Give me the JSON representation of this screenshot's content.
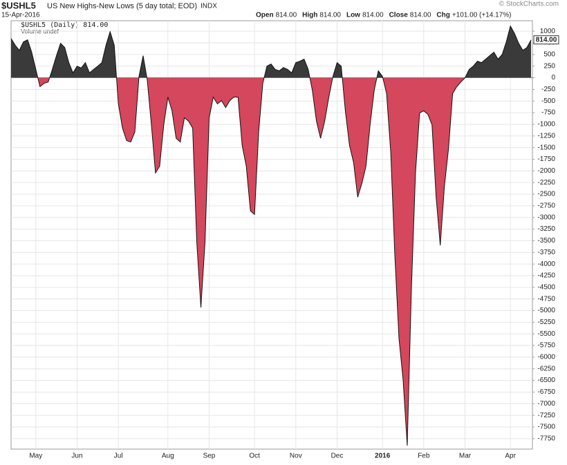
{
  "chart_data": {
    "type": "area",
    "symbol": "$USHL5",
    "title": "US New Highs-New Lows (5 day total; EOD)",
    "exchange": "INDX",
    "date": "15-Apr-2016",
    "quote": [
      {
        "label": "Open",
        "value": "814.00"
      },
      {
        "label": "High",
        "value": "814.00"
      },
      {
        "label": "Low",
        "value": "814.00"
      },
      {
        "label": "Close",
        "value": "814.00"
      },
      {
        "label": "Chg",
        "value": "+101.00 (+14.17%)"
      }
    ],
    "legend": "$USHL5 (Daily) 814.00",
    "volume": "Volume undef",
    "watermark": "© StockCharts.com",
    "last_label": "814.00",
    "positive_color": "#3a3a3a",
    "negative_color": "#d4475c",
    "grid": true,
    "categories": [
      null,
      null,
      null,
      null,
      null,
      null,
      "May",
      null,
      null,
      null,
      null,
      null,
      null,
      null,
      null,
      null,
      "Jun",
      null,
      null,
      null,
      null,
      null,
      null,
      null,
      null,
      null,
      "Jul",
      null,
      null,
      null,
      null,
      null,
      null,
      null,
      null,
      null,
      null,
      null,
      "Aug",
      null,
      null,
      null,
      null,
      null,
      null,
      null,
      null,
      null,
      "Sep",
      null,
      null,
      null,
      null,
      null,
      null,
      null,
      null,
      null,
      null,
      "Oct",
      null,
      null,
      null,
      null,
      null,
      null,
      null,
      null,
      null,
      "Nov",
      null,
      null,
      null,
      null,
      null,
      null,
      null,
      null,
      null,
      "Dec",
      null,
      null,
      null,
      null,
      null,
      null,
      null,
      null,
      null,
      null,
      "2016",
      null,
      null,
      null,
      null,
      null,
      null,
      null,
      null,
      null,
      "Feb",
      null,
      null,
      null,
      null,
      null,
      null,
      null,
      null,
      null,
      "Mar",
      null,
      null,
      null,
      null,
      null,
      null,
      null,
      null,
      null,
      null,
      "Apr",
      null,
      null,
      null,
      null,
      null
    ],
    "values": [
      845,
      700,
      590,
      770,
      815,
      550,
      180,
      -190,
      -120,
      -90,
      180,
      475,
      740,
      650,
      325,
      105,
      250,
      210,
      325,
      105,
      180,
      250,
      325,
      700,
      990,
      700,
      -560,
      -1080,
      -1350,
      -1380,
      -1160,
      30,
      475,
      -45,
      -1010,
      -2045,
      -1900,
      -1010,
      -415,
      -710,
      -1300,
      -1380,
      -860,
      -930,
      -1080,
      -3530,
      -4935,
      -3530,
      -860,
      -415,
      -560,
      -490,
      -640,
      -490,
      -415,
      -415,
      -1450,
      -1900,
      -2860,
      -2935,
      -1160,
      -120,
      250,
      295,
      180,
      150,
      220,
      180,
      105,
      325,
      355,
      400,
      180,
      -265,
      -930,
      -1300,
      -930,
      -415,
      30,
      325,
      250,
      -710,
      -1450,
      -1820,
      -2565,
      -2270,
      -1900,
      -1010,
      -265,
      150,
      30,
      -340,
      -1600,
      -3825,
      -5600,
      -6490,
      -7900,
      -4565,
      -2045,
      -755,
      -710,
      -785,
      -1010,
      -2565,
      -3600,
      -2340,
      -1525,
      -340,
      -190,
      -90,
      0,
      180,
      250,
      355,
      325,
      400,
      475,
      550,
      400,
      500,
      770,
      1110,
      950,
      740,
      590,
      650,
      814
    ],
    "ylim": [
      -7975,
      1225
    ],
    "yticks": [
      1000,
      750,
      500,
      250,
      0,
      -250,
      -500,
      -750,
      -1000,
      -1250,
      -1500,
      -1750,
      -2000,
      -2250,
      -2500,
      -2750,
      -3000,
      -3250,
      -3500,
      -3750,
      -4000,
      -4250,
      -4500,
      -4750,
      -5000,
      -5250,
      -5500,
      -5750,
      -6000,
      -6250,
      -6500,
      -6750,
      -7000,
      -7250,
      -7500,
      -7750
    ]
  }
}
